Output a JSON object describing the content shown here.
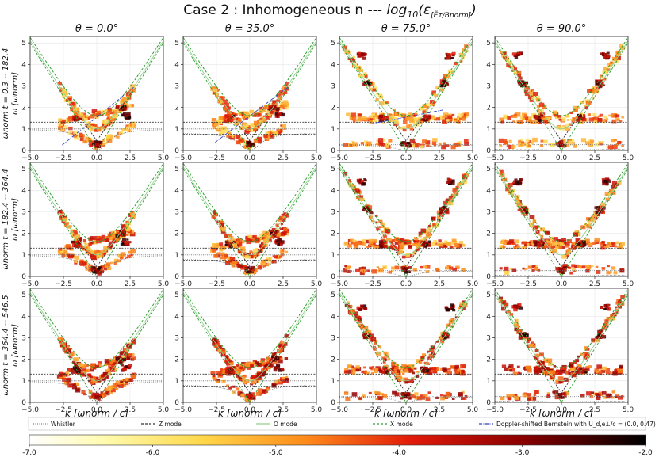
{
  "chart_data": {
    "type": "heatmap",
    "title": "Case 2 : Inhomogeneous n --- log₁₀(ε[Ẽτ/Bnorm])",
    "title_prefix": "Case 2 : Inhomogeneous n --- ",
    "title_math": "log",
    "title_math_sub": "10",
    "title_math_rest": "(ε",
    "title_math_sub2": "[Ẽτ/Bnorm]",
    "title_math_end": ")",
    "columns": [
      "θ = 0.0°",
      "θ = 35.0°",
      "θ = 75.0°",
      "θ = 90.0°"
    ],
    "theta_values": [
      0.0,
      35.0,
      75.0,
      90.0
    ],
    "rows": [
      "ωnorm t = 0.3 -- 182.4",
      "ωnorm t = 182.4 -- 364.4",
      "ωnorm t = 364.4 -- 546.5"
    ],
    "row_ylabels": [
      "ωnorm t = 0.3 -- 182.4",
      "ωnorm t = 182.4 -- 364.4",
      "ωnorm t = 364.4 -- 546.5"
    ],
    "ylabel": "ω [ωnorm]",
    "xlabel": "k [ωnorm / c]",
    "xlim": [
      -5,
      5
    ],
    "ylim": [
      0,
      5.3
    ],
    "xticks": [
      "−5.0",
      "−2.5",
      "0.0",
      "2.5",
      "5.0"
    ],
    "xtick_values": [
      -5,
      -2.5,
      0,
      2.5,
      5
    ],
    "yticks": [
      "0",
      "1",
      "2",
      "3",
      "4",
      "5"
    ],
    "ytick_values": [
      0,
      1,
      2,
      3,
      4,
      5
    ],
    "legend": [
      {
        "label": "Whistler",
        "color": "#777777",
        "style": "dotted"
      },
      {
        "label": "Z mode",
        "color": "#333333",
        "style": "dashed"
      },
      {
        "label": "O mode",
        "color": "#8fd18f",
        "style": "solid"
      },
      {
        "label": "X mode",
        "color": "#2e9e2e",
        "style": "dashed"
      },
      {
        "label": "Doppler-shifted Bernstein with U_d,e⊥/c = (0.0, 0.47)",
        "color": "#3344cc",
        "style": "dashdot"
      }
    ],
    "colorbar": {
      "min": -7.0,
      "max": -2.0,
      "ticks": [
        "-7.0",
        "-6.0",
        "-5.0",
        "-4.0",
        "-3.0",
        "-2.0"
      ],
      "tick_values": [
        -7,
        -6,
        -5,
        -4,
        -3,
        -2
      ],
      "colormap": "hot_r"
    },
    "series_params": {
      "omega_pe": 1.0,
      "omega_ce": 1.0,
      "upper_hybrid_limit": 1.0
    }
  }
}
